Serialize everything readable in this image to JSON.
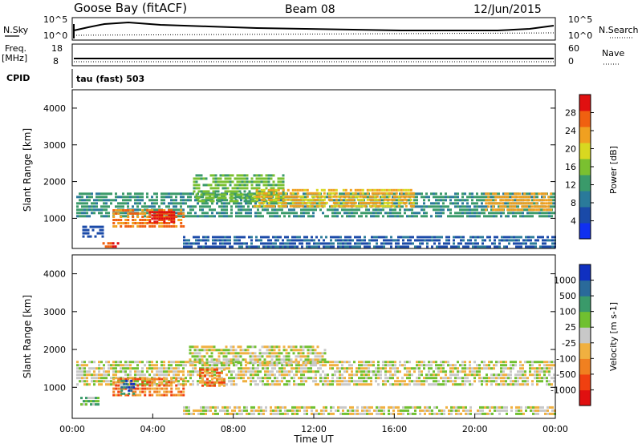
{
  "header": {
    "station": "Goose Bay (fitACF)",
    "beam": "Beam 08",
    "date": "12/Jun/2015"
  },
  "top_panels": {
    "nsky_label": "N.Sky",
    "nsky_ticks": [
      "10^5",
      "10^0"
    ],
    "nsearch_label": "N.Search",
    "nsearch_ticks": [
      "10^5",
      "10^0"
    ],
    "freq_label_1": "Freq.",
    "freq_label_2": "[MHz]",
    "freq_ticks": [
      "18",
      "8"
    ],
    "nave_label": "Nave",
    "nave_ticks": [
      "60",
      "0"
    ],
    "cpid_label": "CPID",
    "cpid_value": "tau (fast) 503"
  },
  "chart_data": [
    {
      "type": "heatmap",
      "name": "power",
      "ylabel": "Slant Range [km]",
      "yticks": [
        "4000",
        "3000",
        "2000",
        "1000"
      ],
      "ylim": [
        180,
        4500
      ],
      "xlim": [
        0,
        24
      ],
      "colorbar_label": "Power [dB]",
      "colorbar_ticks": [
        "28",
        "24",
        "20",
        "16",
        "12",
        "8",
        "4"
      ],
      "colorbar_range": [
        0,
        30
      ],
      "colors": [
        "#1030f0",
        "#1a4aa8",
        "#2a7a9a",
        "#3a9a6a",
        "#7ac030",
        "#d8d820",
        "#f0a020",
        "#f06010",
        "#e01010"
      ],
      "bands": [
        {
          "t0": 0.2,
          "t1": 24.0,
          "r0": 1050,
          "r1": 1700,
          "level": 10
        },
        {
          "t0": 2.0,
          "t1": 5.5,
          "r0": 800,
          "r1": 1250,
          "level": 24
        },
        {
          "t0": 3.8,
          "t1": 5.0,
          "r0": 900,
          "r1": 1200,
          "level": 28
        },
        {
          "t0": 6.0,
          "t1": 10.5,
          "r0": 1500,
          "r1": 2200,
          "level": 14
        },
        {
          "t0": 9.0,
          "t1": 17.0,
          "r0": 1300,
          "r1": 1800,
          "level": 20
        },
        {
          "t0": 20.5,
          "t1": 23.8,
          "r0": 1200,
          "r1": 1700,
          "level": 22
        },
        {
          "t0": 5.5,
          "t1": 24.0,
          "r0": 250,
          "r1": 520,
          "level": 6
        },
        {
          "t0": 0.5,
          "t1": 1.5,
          "r0": 500,
          "r1": 800,
          "level": 5
        },
        {
          "t0": 1.5,
          "t1": 2.3,
          "r0": 200,
          "r1": 350,
          "level": 26
        }
      ]
    },
    {
      "type": "heatmap",
      "name": "velocity",
      "ylabel": "Slant Range [km]",
      "yticks": [
        "4000",
        "3000",
        "2000",
        "1000"
      ],
      "ylim": [
        180,
        4500
      ],
      "xlim": [
        0,
        24
      ],
      "xlabel": "Time UT",
      "xticks": [
        "00:00",
        "04:00",
        "08:00",
        "12:00",
        "16:00",
        "20:00",
        "00:00"
      ],
      "colorbar_label": "Velocity [m s-1]",
      "colorbar_ticks": [
        "1000",
        "500",
        "100",
        "25",
        "-25",
        "-100",
        "-500",
        "-1000"
      ],
      "colors": [
        "#1030c0",
        "#2a6a9a",
        "#3a9a6a",
        "#70c030",
        "#c8c8c8",
        "#f0b040",
        "#f08020",
        "#f04010",
        "#e01010"
      ],
      "bands": [
        {
          "t0": 0.2,
          "t1": 24.0,
          "r0": 1050,
          "r1": 1700,
          "level": 4
        },
        {
          "t0": 2.0,
          "t1": 5.5,
          "r0": 800,
          "r1": 1250,
          "level": 6
        },
        {
          "t0": 6.3,
          "t1": 7.5,
          "r0": 1000,
          "r1": 1500,
          "level": 6
        },
        {
          "t0": 5.8,
          "t1": 12.5,
          "r0": 1600,
          "r1": 2100,
          "level": 4
        },
        {
          "t0": 0.4,
          "t1": 1.3,
          "r0": 550,
          "r1": 750,
          "level": 3
        },
        {
          "t0": 2.4,
          "t1": 3.0,
          "r0": 800,
          "r1": 1200,
          "level": 1
        },
        {
          "t0": 5.5,
          "t1": 24.0,
          "r0": 250,
          "r1": 500,
          "level": 4
        }
      ]
    }
  ]
}
